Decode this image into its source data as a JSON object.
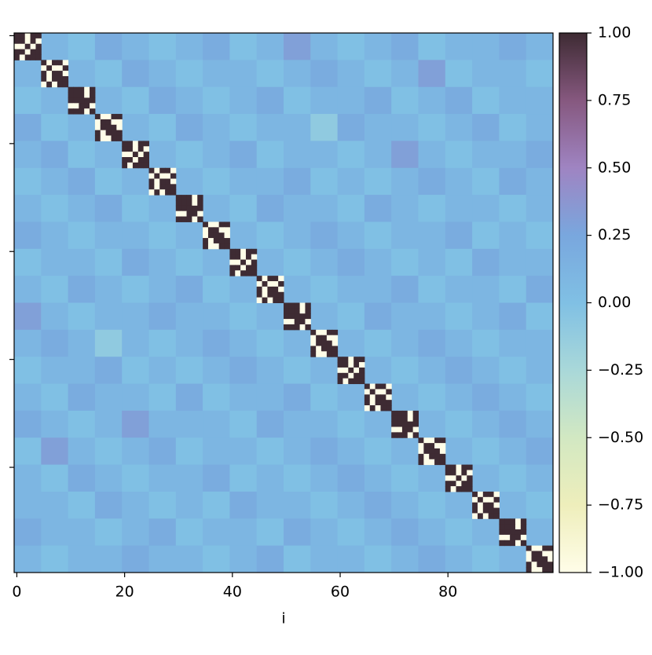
{
  "chart_data": {
    "type": "heatmap",
    "xlabel": "i",
    "xlim": [
      -0.5,
      99.5
    ],
    "ylim": [
      -0.5,
      99.5
    ],
    "xticks": [
      0,
      20,
      40,
      60,
      80
    ],
    "yticks": [
      0,
      20,
      40,
      60,
      80
    ],
    "edges": [
      -0.5,
      4.5,
      9.5,
      14.5,
      19.5,
      24.5,
      29.5,
      34.5,
      39.5,
      44.5,
      49.5,
      54.5,
      59.5,
      64.5,
      69.5,
      74.5,
      79.5,
      84.5,
      89.5,
      94.5,
      99.5
    ],
    "clim": [
      -1,
      1
    ],
    "cticks": [
      {
        "value": -1,
        "label": "−1.00"
      },
      {
        "value": -0.75,
        "label": "−0.75"
      },
      {
        "value": -0.5,
        "label": "−0.50"
      },
      {
        "value": -0.25,
        "label": "−0.25"
      },
      {
        "value": 0,
        "label": "0.00"
      },
      {
        "value": 0.25,
        "label": "0.25"
      },
      {
        "value": 0.5,
        "label": "0.50"
      },
      {
        "value": 0.75,
        "label": "0.75"
      },
      {
        "value": 1,
        "label": "1.00"
      }
    ],
    "colormap": [
      "#fffde8",
      "#eeeebb",
      "#d2e8c2",
      "#a9d8d9",
      "#80c0e4",
      "#79a7de",
      "#9f84c2",
      "#86587f",
      "#3e2b33"
    ],
    "values": [
      [
        null,
        0.1,
        0,
        0.2,
        0.1,
        0,
        0.1,
        0.2,
        0,
        0.1,
        0.3,
        0.1,
        0,
        0.1,
        0.2,
        0,
        0.1,
        0.1,
        0.2,
        0.1
      ],
      [
        0.1,
        null,
        0.1,
        0,
        0.2,
        0.1,
        0,
        0.1,
        0.1,
        0,
        0.1,
        0.2,
        0.1,
        0,
        0.1,
        0.3,
        0,
        0.1,
        0.1,
        0
      ],
      [
        0,
        0.1,
        null,
        0.1,
        0,
        0.2,
        0.1,
        0,
        0.1,
        0.2,
        0,
        0.1,
        0.1,
        0.2,
        0,
        0.1,
        0.2,
        0,
        0.1,
        0.1
      ],
      [
        0.2,
        0,
        0.1,
        null,
        0.1,
        0,
        0.2,
        0.1,
        0,
        0.1,
        0.1,
        -0.1,
        0.2,
        0.1,
        0.1,
        0,
        0.1,
        0.2,
        0,
        0.1
      ],
      [
        0.1,
        0.2,
        0,
        0.1,
        null,
        0.1,
        0,
        0.1,
        0.2,
        0,
        0.1,
        0.1,
        0,
        0.1,
        0.3,
        0.1,
        0,
        0.1,
        0.1,
        0.2
      ],
      [
        0,
        0.1,
        0.2,
        0,
        0.1,
        null,
        0.1,
        0,
        0.1,
        0.1,
        0.2,
        0,
        0.1,
        0,
        0.1,
        0.2,
        0.1,
        0,
        0.2,
        0.1
      ],
      [
        0.1,
        0,
        0.1,
        0.2,
        0,
        0.1,
        null,
        0.1,
        0,
        0.2,
        0.1,
        0.1,
        0,
        0.2,
        0.1,
        0,
        0.1,
        0.1,
        0,
        0.1
      ],
      [
        0.2,
        0.1,
        0,
        0.1,
        0.1,
        0,
        0.1,
        null,
        0.1,
        0,
        0.1,
        0.2,
        0.1,
        0,
        0.1,
        0.1,
        0.2,
        0,
        0.1,
        0
      ],
      [
        0,
        0.1,
        0.1,
        0,
        0.2,
        0.1,
        0,
        0.1,
        null,
        0.1,
        0,
        0.1,
        0.2,
        0.1,
        0,
        0.1,
        0,
        0.2,
        0.1,
        0.1
      ],
      [
        0.1,
        0,
        0.2,
        0.1,
        0,
        0.1,
        0.2,
        0,
        0.1,
        null,
        0.1,
        0,
        0.1,
        0.1,
        0.2,
        0,
        0.1,
        0.1,
        0,
        0.2
      ],
      [
        0.3,
        0.1,
        0,
        0.1,
        0.1,
        0.2,
        0.1,
        0.1,
        0,
        0.1,
        null,
        0.1,
        0,
        0.2,
        0.1,
        0.1,
        0,
        0.1,
        0.2,
        0
      ],
      [
        0.1,
        0.2,
        0.1,
        -0.1,
        0.1,
        0,
        0.1,
        0.2,
        0.1,
        0,
        0.1,
        null,
        0.1,
        0,
        0.1,
        0.2,
        0.1,
        0,
        0.1,
        0.1
      ],
      [
        0,
        0.1,
        0.1,
        0.2,
        0,
        0.1,
        0,
        0.1,
        0.2,
        0.1,
        0,
        0.1,
        null,
        0.1,
        0,
        0.1,
        0.2,
        0.1,
        0,
        0.1
      ],
      [
        0.1,
        0,
        0.2,
        0.1,
        0.1,
        0,
        0.2,
        0,
        0.1,
        0.1,
        0.2,
        0,
        0.1,
        null,
        0.1,
        0,
        0.1,
        0.2,
        0.1,
        0
      ],
      [
        0.2,
        0.1,
        0,
        0.1,
        0.3,
        0.1,
        0.1,
        0.1,
        0,
        0.2,
        0.1,
        0.1,
        0,
        0.1,
        null,
        0.1,
        0,
        0.1,
        0.2,
        0.1
      ],
      [
        0,
        0.3,
        0.1,
        0,
        0.1,
        0.2,
        0,
        0.1,
        0.1,
        0,
        0.1,
        0.2,
        0.1,
        0,
        0.1,
        null,
        0.1,
        0,
        0.1,
        0.2
      ],
      [
        0.1,
        0,
        0.2,
        0.1,
        0,
        0.1,
        0.1,
        0.2,
        0,
        0.1,
        0,
        0.1,
        0.2,
        0.1,
        0,
        0.1,
        null,
        0.1,
        0,
        0.1
      ],
      [
        0.1,
        0.1,
        0,
        0.2,
        0.1,
        0,
        0.1,
        0,
        0.2,
        0.1,
        0.1,
        0,
        0.1,
        0.2,
        0.1,
        0,
        0.1,
        null,
        0.1,
        0
      ],
      [
        0.2,
        0.1,
        0.1,
        0,
        0.1,
        0.2,
        0,
        0.1,
        0.1,
        0,
        0.2,
        0.1,
        0,
        0.1,
        0.2,
        0.1,
        0,
        0.1,
        null,
        0.1
      ],
      [
        0.1,
        0,
        0.1,
        0.1,
        0.2,
        0.1,
        0.1,
        0,
        0.1,
        0.2,
        0,
        0.1,
        0.1,
        0,
        0.1,
        0.2,
        0.1,
        0,
        0.1,
        null
      ]
    ],
    "diagonal_blocks": [
      [
        [
          1,
          1,
          -1,
          1,
          1
        ],
        [
          1,
          1,
          -1,
          1,
          -1
        ],
        [
          -1,
          -1,
          1,
          -1,
          1
        ],
        [
          1,
          1,
          -1,
          1,
          1
        ],
        [
          1,
          -1,
          1,
          1,
          1
        ]
      ],
      [
        [
          1,
          -1,
          1,
          1,
          -1
        ],
        [
          -1,
          1,
          -1,
          -1,
          1
        ],
        [
          1,
          -1,
          1,
          1,
          -1
        ],
        [
          1,
          -1,
          1,
          1,
          1
        ],
        [
          -1,
          1,
          -1,
          1,
          1
        ]
      ],
      [
        [
          1,
          1,
          1,
          -1,
          1
        ],
        [
          1,
          1,
          1,
          -1,
          1
        ],
        [
          1,
          1,
          1,
          1,
          1
        ],
        [
          -1,
          -1,
          1,
          1,
          -1
        ],
        [
          1,
          1,
          1,
          -1,
          1
        ]
      ],
      [
        [
          1,
          -1,
          -1,
          1,
          1
        ],
        [
          -1,
          1,
          1,
          -1,
          -1
        ],
        [
          -1,
          1,
          1,
          1,
          -1
        ],
        [
          1,
          -1,
          1,
          1,
          1
        ],
        [
          1,
          -1,
          -1,
          1,
          1
        ]
      ],
      [
        [
          1,
          1,
          -1,
          1,
          1
        ],
        [
          1,
          1,
          -1,
          1,
          -1
        ],
        [
          -1,
          -1,
          1,
          -1,
          1
        ],
        [
          1,
          1,
          -1,
          1,
          1
        ],
        [
          1,
          -1,
          1,
          1,
          1
        ]
      ],
      [
        [
          1,
          -1,
          1,
          1,
          -1
        ],
        [
          -1,
          1,
          -1,
          -1,
          1
        ],
        [
          1,
          -1,
          1,
          1,
          -1
        ],
        [
          1,
          -1,
          1,
          1,
          1
        ],
        [
          -1,
          1,
          -1,
          1,
          1
        ]
      ],
      [
        [
          1,
          1,
          1,
          -1,
          1
        ],
        [
          1,
          1,
          1,
          -1,
          1
        ],
        [
          1,
          1,
          1,
          1,
          1
        ],
        [
          -1,
          -1,
          1,
          1,
          -1
        ],
        [
          1,
          1,
          1,
          -1,
          1
        ]
      ],
      [
        [
          1,
          -1,
          -1,
          1,
          1
        ],
        [
          -1,
          1,
          1,
          -1,
          -1
        ],
        [
          -1,
          1,
          1,
          1,
          -1
        ],
        [
          1,
          -1,
          1,
          1,
          1
        ],
        [
          1,
          -1,
          -1,
          1,
          1
        ]
      ],
      [
        [
          1,
          1,
          -1,
          1,
          1
        ],
        [
          1,
          1,
          -1,
          1,
          -1
        ],
        [
          -1,
          -1,
          1,
          -1,
          1
        ],
        [
          1,
          1,
          -1,
          1,
          1
        ],
        [
          1,
          -1,
          1,
          1,
          1
        ]
      ],
      [
        [
          1,
          -1,
          1,
          1,
          -1
        ],
        [
          -1,
          1,
          -1,
          -1,
          1
        ],
        [
          1,
          -1,
          1,
          1,
          -1
        ],
        [
          1,
          -1,
          1,
          1,
          1
        ],
        [
          -1,
          1,
          -1,
          1,
          1
        ]
      ],
      [
        [
          1,
          1,
          1,
          -1,
          1
        ],
        [
          1,
          1,
          1,
          -1,
          1
        ],
        [
          1,
          1,
          1,
          1,
          1
        ],
        [
          -1,
          -1,
          1,
          1,
          -1
        ],
        [
          1,
          1,
          1,
          -1,
          1
        ]
      ],
      [
        [
          1,
          -1,
          -1,
          1,
          1
        ],
        [
          -1,
          1,
          1,
          -1,
          -1
        ],
        [
          -1,
          1,
          1,
          1,
          -1
        ],
        [
          1,
          -1,
          1,
          1,
          1
        ],
        [
          1,
          -1,
          -1,
          1,
          1
        ]
      ],
      [
        [
          1,
          1,
          -1,
          1,
          1
        ],
        [
          1,
          1,
          -1,
          1,
          -1
        ],
        [
          -1,
          -1,
          1,
          -1,
          1
        ],
        [
          1,
          1,
          -1,
          1,
          1
        ],
        [
          1,
          -1,
          1,
          1,
          1
        ]
      ],
      [
        [
          1,
          -1,
          1,
          1,
          -1
        ],
        [
          -1,
          1,
          -1,
          -1,
          1
        ],
        [
          1,
          -1,
          1,
          1,
          -1
        ],
        [
          1,
          -1,
          1,
          1,
          1
        ],
        [
          -1,
          1,
          -1,
          1,
          1
        ]
      ],
      [
        [
          1,
          1,
          1,
          -1,
          1
        ],
        [
          1,
          1,
          1,
          -1,
          1
        ],
        [
          1,
          1,
          1,
          1,
          1
        ],
        [
          -1,
          -1,
          1,
          1,
          -1
        ],
        [
          1,
          1,
          1,
          -1,
          1
        ]
      ],
      [
        [
          1,
          -1,
          -1,
          1,
          1
        ],
        [
          -1,
          1,
          1,
          -1,
          -1
        ],
        [
          -1,
          1,
          1,
          1,
          -1
        ],
        [
          1,
          -1,
          1,
          1,
          1
        ],
        [
          1,
          -1,
          -1,
          1,
          1
        ]
      ],
      [
        [
          1,
          1,
          -1,
          1,
          1
        ],
        [
          1,
          1,
          -1,
          1,
          -1
        ],
        [
          -1,
          -1,
          1,
          -1,
          1
        ],
        [
          1,
          1,
          -1,
          1,
          1
        ],
        [
          1,
          -1,
          1,
          1,
          1
        ]
      ],
      [
        [
          1,
          -1,
          1,
          1,
          -1
        ],
        [
          -1,
          1,
          -1,
          -1,
          1
        ],
        [
          1,
          -1,
          1,
          1,
          -1
        ],
        [
          1,
          -1,
          1,
          1,
          1
        ],
        [
          -1,
          1,
          -1,
          1,
          1
        ]
      ],
      [
        [
          1,
          1,
          1,
          -1,
          1
        ],
        [
          1,
          1,
          1,
          -1,
          1
        ],
        [
          1,
          1,
          1,
          1,
          1
        ],
        [
          -1,
          -1,
          1,
          1,
          -1
        ],
        [
          1,
          1,
          1,
          -1,
          1
        ]
      ],
      [
        [
          1,
          -1,
          -1,
          1,
          1
        ],
        [
          -1,
          1,
          1,
          -1,
          -1
        ],
        [
          -1,
          1,
          1,
          1,
          -1
        ],
        [
          1,
          -1,
          1,
          1,
          1
        ],
        [
          1,
          -1,
          -1,
          1,
          1
        ]
      ]
    ]
  }
}
